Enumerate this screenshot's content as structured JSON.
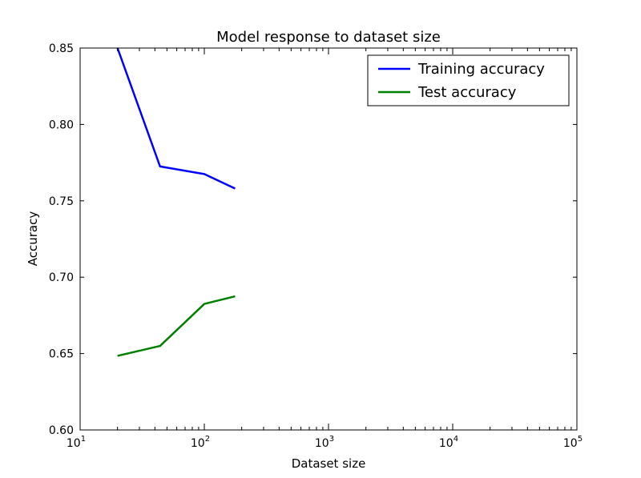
{
  "chart_data": {
    "type": "line",
    "title": "Model response to dataset size",
    "xlabel": "Dataset size",
    "ylabel": "Accuracy",
    "xscale": "log",
    "xlim": [
      10,
      100000
    ],
    "ylim": [
      0.6,
      0.85
    ],
    "x_ticks": [
      {
        "base": "10",
        "exp": "1",
        "value": 10
      },
      {
        "base": "10",
        "exp": "2",
        "value": 100
      },
      {
        "base": "10",
        "exp": "3",
        "value": 1000
      },
      {
        "base": "10",
        "exp": "4",
        "value": 10000
      },
      {
        "base": "10",
        "exp": "5",
        "value": 100000
      }
    ],
    "y_ticks": [
      {
        "label": "0.60",
        "value": 0.6
      },
      {
        "label": "0.65",
        "value": 0.65
      },
      {
        "label": "0.70",
        "value": 0.7
      },
      {
        "label": "0.75",
        "value": 0.75
      },
      {
        "label": "0.80",
        "value": 0.8
      },
      {
        "label": "0.85",
        "value": 0.85
      }
    ],
    "grid": false,
    "legend_position": "top-right",
    "series": [
      {
        "name": "Training accuracy",
        "color": "#0000ff",
        "x": [
          20,
          44,
          100,
          177
        ],
        "y": [
          0.85,
          0.7725,
          0.7675,
          0.758
        ]
      },
      {
        "name": "Test accuracy",
        "color": "#008000",
        "x": [
          20,
          44,
          100,
          177
        ],
        "y": [
          0.6485,
          0.655,
          0.6825,
          0.6875
        ]
      }
    ]
  }
}
